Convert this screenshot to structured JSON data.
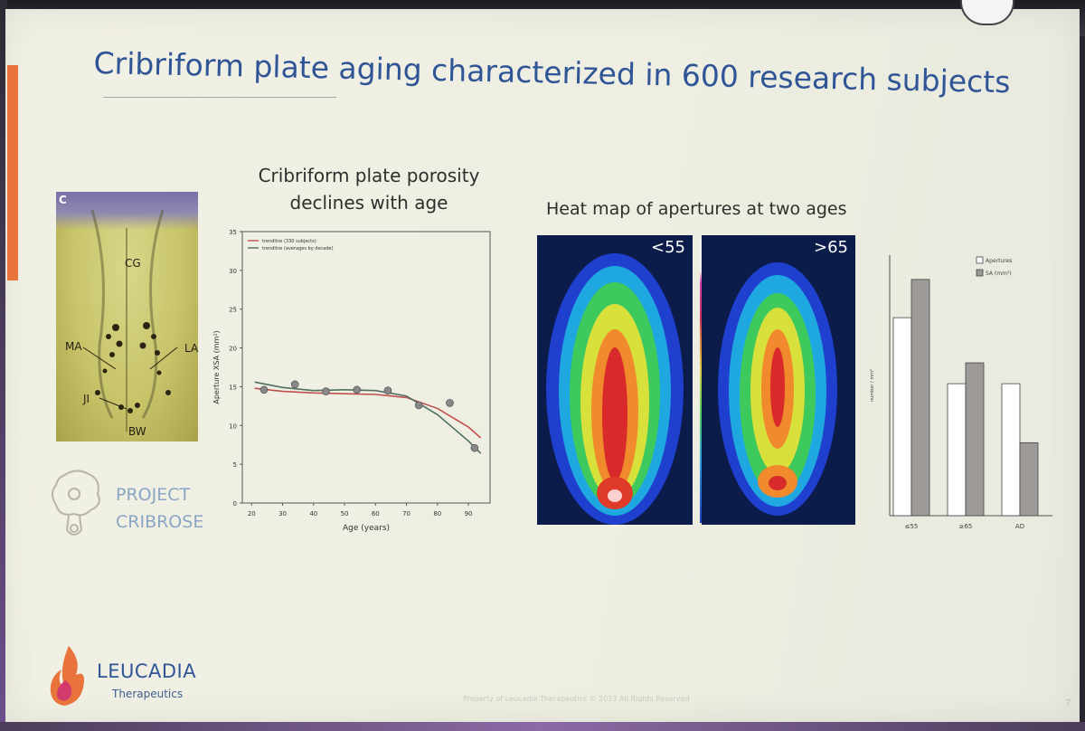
{
  "slide": {
    "title": "Cribriform plate aging characterized in 600 research subjects",
    "page_number": "7",
    "footer": "Property of Leucadia Therapeutics © 2023 All Rights Reserved"
  },
  "histology": {
    "panel_letter": "C",
    "labels": {
      "cg": "CG",
      "ma": "MA",
      "la": "LA",
      "ji": "JI",
      "bw": "BW"
    }
  },
  "project": {
    "line1": "PROJECT",
    "line2": "CRIBROSE",
    "icon": "brain-flame-icon"
  },
  "logo": {
    "name": "LEUCADIA",
    "sub": "Therapeutics",
    "icon": "flame-icon",
    "colors": [
      "#e8743b",
      "#d23a6e"
    ]
  },
  "porosity_chart": {
    "title_line1": "Cribriform plate porosity",
    "title_line2": "declines with age"
  },
  "heatmap": {
    "title": "Heat map of apertures at two ages",
    "panels": [
      {
        "label": "<55"
      },
      {
        "label": ">65"
      }
    ]
  },
  "colors": {
    "title": "#2f5597",
    "accent": "#e8743b",
    "red_line": "#c0504d",
    "green_line": "#4f6f5f",
    "bar_light": "#ffffff",
    "bar_dark": "#9e9a98"
  },
  "chart_data": [
    {
      "type": "line",
      "xlabel": "Age (years)",
      "ylabel": "Aperture XSA (mm²)",
      "xticks": [
        20,
        30,
        40,
        50,
        60,
        70,
        80,
        90
      ],
      "yticks": [
        0,
        5,
        10,
        15,
        20,
        25,
        30,
        35
      ],
      "xlim": [
        17,
        97
      ],
      "ylim": [
        0,
        35
      ],
      "grid": false,
      "legend_position": "top-left",
      "series": [
        {
          "name": "trendline (330 subjects)",
          "kind": "line",
          "color": "#c0504d",
          "x": [
            21,
            30,
            40,
            50,
            60,
            70,
            80,
            90,
            94
          ],
          "y": [
            14.8,
            14.4,
            14.2,
            14.1,
            14.0,
            13.6,
            12.2,
            9.8,
            8.4
          ]
        },
        {
          "name": "trendline (averages by decade)",
          "kind": "line",
          "color": "#4f6f5f",
          "x": [
            21,
            30,
            40,
            50,
            60,
            70,
            80,
            90,
            94
          ],
          "y": [
            15.6,
            14.9,
            14.5,
            14.6,
            14.5,
            13.8,
            11.4,
            8.0,
            6.4
          ]
        },
        {
          "name": "",
          "kind": "scatter",
          "color": "#888888",
          "x": [
            24,
            34,
            44,
            54,
            64,
            74,
            84,
            92
          ],
          "y": [
            14.6,
            15.3,
            14.4,
            14.6,
            14.5,
            12.6,
            12.9,
            7.1
          ]
        }
      ]
    },
    {
      "type": "bar",
      "categories": [
        "≤55",
        "≥65",
        "AD"
      ],
      "ylabel": "number / mm²",
      "ylim": [
        0,
        7.5
      ],
      "legend_position": "top-right",
      "series": [
        {
          "name": "Apertures",
          "color": "#ffffff",
          "values": [
            5.7,
            3.8,
            3.8
          ]
        },
        {
          "name": "SA (mm²)",
          "color": "#9e9a98",
          "values": [
            6.8,
            4.4,
            2.1
          ]
        }
      ]
    }
  ]
}
